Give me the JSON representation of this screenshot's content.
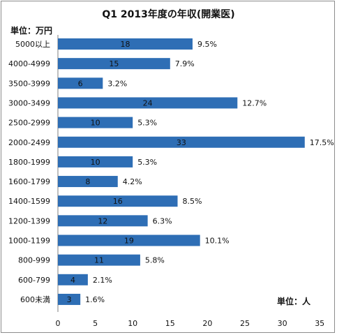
{
  "chart_data": {
    "type": "bar",
    "orientation": "horizontal",
    "title": "Q1  2013年度の年収(開業医)",
    "y_unit_label": "単位：万円",
    "x_unit_label": "単位：人",
    "categories": [
      "5000以上",
      "4000-4999",
      "3500-3999",
      "3000-3499",
      "2500-2999",
      "2000-2499",
      "1800-1999",
      "1600-1799",
      "1400-1599",
      "1200-1399",
      "1000-1199",
      "800-999",
      "600-799",
      "600未満"
    ],
    "values": [
      18,
      15,
      6,
      24,
      10,
      33,
      10,
      8,
      16,
      12,
      19,
      11,
      4,
      3
    ],
    "percent_labels": [
      "9.5%",
      "7.9%",
      "3.2%",
      "12.7%",
      "5.3%",
      "17.5%",
      "5.3%",
      "4.2%",
      "8.5%",
      "6.3%",
      "10.1%",
      "5.8%",
      "2.1%",
      "1.6%"
    ],
    "xlim": [
      0,
      35
    ],
    "xticks": [
      0,
      5,
      10,
      15,
      20,
      25,
      30,
      35
    ],
    "bar_color": "#2e6eb5",
    "grid": false
  }
}
